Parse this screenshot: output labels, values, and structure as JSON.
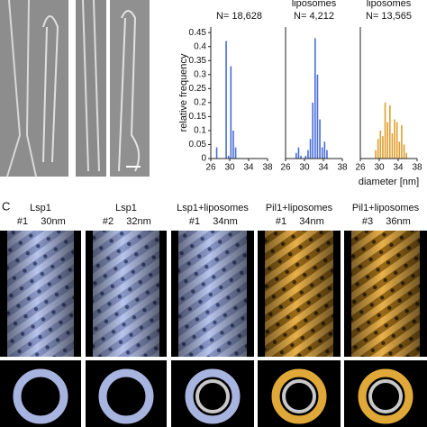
{
  "chart_data": [
    {
      "type": "histogram",
      "title": "N= 18,628",
      "ylabel": "relative frequency",
      "color": "#4a6fd8",
      "bins": [
        27,
        27.5,
        28,
        28.5,
        29,
        29.5,
        30,
        30.5,
        31,
        31.5
      ],
      "values": [
        0.04,
        0,
        0,
        0,
        0.42,
        0.01,
        0.33,
        0.1,
        0.04
      ],
      "xlim": [
        26,
        38
      ],
      "xticks": [
        26,
        30,
        34,
        38
      ],
      "ylim": [
        0,
        0.47
      ],
      "yticks": [
        0,
        0.05,
        0.1,
        0.15,
        0.2,
        0.25,
        0.3,
        0.35,
        0.4,
        0.45
      ]
    },
    {
      "type": "histogram",
      "title": "liposomes",
      "subtitle": "N= 4,212",
      "color": "#4a6fd8",
      "bins": [
        28,
        28.5,
        29,
        29.5,
        30,
        30.5,
        31,
        31.5,
        32,
        32.5,
        33,
        33.5,
        34,
        34.5,
        35
      ],
      "values": [
        0.02,
        0.04,
        0.01,
        0,
        0.01,
        0.03,
        0.07,
        0.2,
        0.43,
        0.3,
        0.14,
        0.04,
        0.06,
        0.03
      ],
      "xlim": [
        26,
        38
      ],
      "xticks": [
        26,
        30,
        34,
        38
      ],
      "ylim": [
        0,
        0.47
      ]
    },
    {
      "type": "histogram",
      "title": "liposomes",
      "subtitle": "N= 13,565",
      "xlabel": "diameter [nm]",
      "color": "#e0a030",
      "bins": [
        29,
        29.5,
        30,
        30.5,
        31,
        31.5,
        32,
        32.5,
        33,
        33.5,
        34,
        34.5,
        35,
        35.5,
        36
      ],
      "values": [
        0.03,
        0.07,
        0.1,
        0.08,
        0.2,
        0.13,
        0.19,
        0.09,
        0.14,
        0.13,
        0.06,
        0.12,
        0.05,
        0.02
      ],
      "xlim": [
        26,
        38
      ],
      "xticks": [
        26,
        30,
        34,
        38
      ],
      "ylim": [
        0,
        0.47
      ]
    }
  ],
  "panel_c": {
    "label": "C",
    "columns": [
      {
        "title": "Lsp1",
        "id": "#1",
        "size": "30nm"
      },
      {
        "title": "Lsp1",
        "id": "#2",
        "size": "32nm"
      },
      {
        "title": "Lsp1+liposomes",
        "id": "#1",
        "size": "34nm"
      },
      {
        "title": "Pil1+liposomes",
        "id": "#1",
        "size": "34nm"
      },
      {
        "title": "Pil1+liposomes",
        "id": "#3",
        "size": "36nm"
      }
    ]
  }
}
